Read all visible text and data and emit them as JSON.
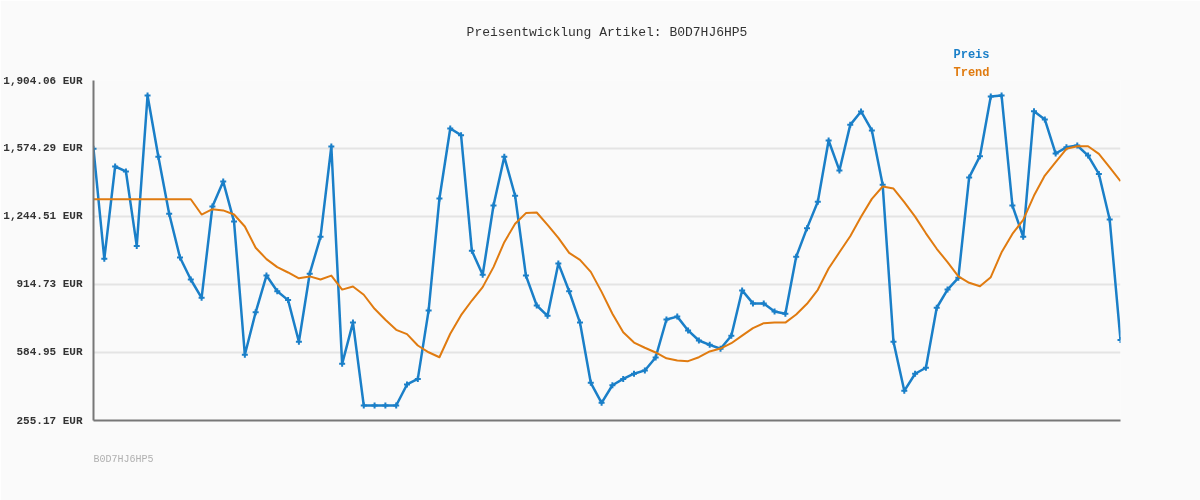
{
  "chart_data": {
    "type": "line",
    "title": "Preisentwicklung Artikel: B0D7HJ6HP5",
    "categories": [
      null,
      null,
      null,
      null,
      null,
      null,
      null,
      null,
      null,
      null,
      null,
      null,
      null,
      null,
      null,
      null,
      null,
      null,
      null,
      null,
      null,
      null,
      null,
      null,
      null,
      null,
      null,
      null,
      null,
      null,
      null,
      null,
      null,
      null,
      null,
      null,
      null,
      null,
      null,
      null,
      null,
      null,
      null,
      null,
      null,
      null,
      null,
      null,
      null,
      null,
      null,
      null,
      null,
      null,
      null,
      null,
      null,
      null,
      null,
      null,
      null,
      null,
      null,
      null,
      null,
      null,
      null,
      null,
      null,
      null,
      null,
      null,
      null,
      null,
      null,
      null,
      null,
      null,
      null,
      null,
      null,
      null,
      null,
      null,
      null,
      null,
      null,
      null,
      null,
      null,
      null,
      null,
      null,
      null,
      null,
      null
    ],
    "series": [
      {
        "name": "Preis",
        "color": "#1a7fc8",
        "marker": "cross",
        "values": [
          1573,
          1039,
          1487,
          1463,
          1102,
          1831,
          1534,
          1258,
          1046,
          939,
          850,
          1293,
          1414,
          1220,
          574,
          780,
          958,
          882,
          839,
          637,
          967,
          1146,
          1584,
          530,
          730,
          328,
          328,
          328,
          328,
          430,
          457,
          789,
          1332,
          1671,
          1639,
          1078,
          962,
          1298,
          1534,
          1345,
          958,
          813,
          763,
          1017,
          882,
          730,
          438,
          341,
          426,
          457,
          482,
          498,
          561,
          745,
          759,
          692,
          643,
          622,
          603,
          666,
          886,
          823,
          823,
          784,
          773,
          1049,
          1188,
          1316,
          1613,
          1468,
          1689,
          1754,
          1662,
          1398,
          637,
          399,
          482,
          511,
          802,
          890,
          947,
          1434,
          1537,
          1826,
          1831,
          1298,
          1146,
          1755,
          1715,
          1550,
          1580,
          1589,
          1540,
          1451,
          1230,
          646
        ]
      },
      {
        "name": "Trend",
        "color": "#e07b10",
        "marker": "none",
        "values": [
          1328,
          1328,
          1328,
          1328,
          1328,
          1328,
          1328,
          1328,
          1328,
          1328,
          1254,
          1280,
          1274,
          1254,
          1196,
          1093,
          1038,
          999,
          973,
          945,
          954,
          939,
          958,
          890,
          905,
          865,
          797,
          744,
          695,
          674,
          619,
          586,
          562,
          676,
          766,
          837,
          902,
          999,
          1120,
          1209,
          1261,
          1264,
          1204,
          1141,
          1068,
          1034,
          976,
          879,
          773,
          683,
          633,
          608,
          585,
          557,
          546,
          543,
          562,
          590,
          604,
          630,
          667,
          703,
          727,
          730,
          730,
          769,
          821,
          889,
          992,
          1071,
          1149,
          1243,
          1330,
          1390,
          1380,
          1314,
          1244,
          1163,
          1088,
          1023,
          954,
          923,
          906,
          950,
          1071,
          1160,
          1228,
          1346,
          1443,
          1508,
          1573,
          1585,
          1585,
          1548,
          1483,
          1416
        ]
      }
    ],
    "ylim": [
      255.17,
      1904.06
    ],
    "yticks": [
      {
        "value": 255.17,
        "label": "255.17 EUR"
      },
      {
        "value": 584.95,
        "label": "584.95 EUR"
      },
      {
        "value": 914.73,
        "label": "914.73 EUR"
      },
      {
        "value": 1244.51,
        "label": "1,244.51 EUR"
      },
      {
        "value": 1574.29,
        "label": "1,574.29 EUR"
      },
      {
        "value": 1904.06,
        "label": "1,904.06 EUR"
      }
    ],
    "tick_labels": "y",
    "grid": "y",
    "line_style": "solid",
    "annotations": [
      "B0D7HJ6HP5"
    ]
  }
}
